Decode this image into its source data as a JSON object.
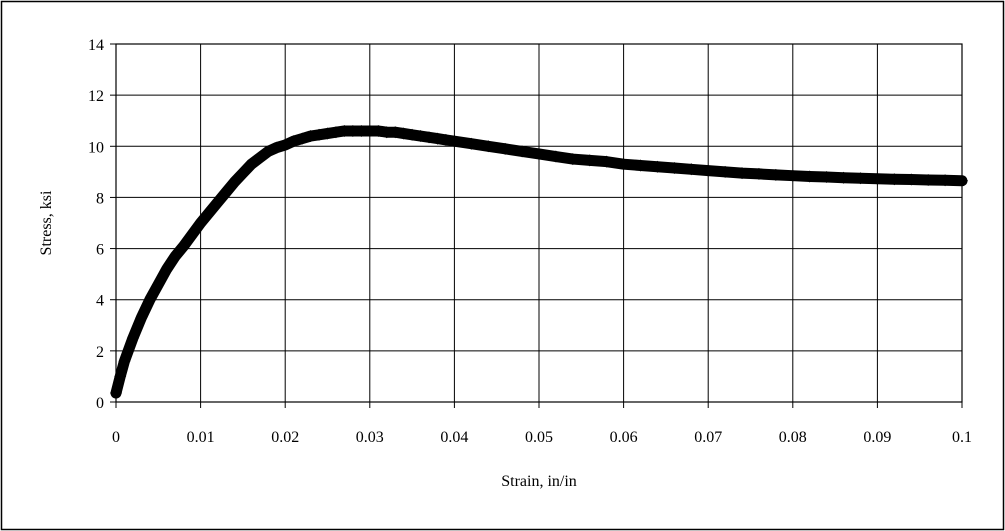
{
  "chart_data": {
    "type": "scatter",
    "title": "",
    "xlabel": "Strain, in/in",
    "ylabel": "Stress, ksi",
    "xlim": [
      0,
      0.1
    ],
    "ylim": [
      0,
      14
    ],
    "grid": true,
    "legend": "none",
    "marker": "diamond",
    "marker_color": "#000000",
    "x_ticks": [
      0,
      0.01,
      0.02,
      0.03,
      0.04,
      0.05,
      0.06,
      0.07,
      0.08,
      0.09,
      0.1
    ],
    "x_tick_labels": [
      "0",
      "0.01",
      "0.02",
      "0.03",
      "0.04",
      "0.05",
      "0.06",
      "0.07",
      "0.08",
      "0.09",
      "0.1"
    ],
    "y_ticks": [
      0,
      2,
      4,
      6,
      8,
      10,
      12,
      14
    ],
    "y_tick_labels": [
      "0",
      "2",
      "4",
      "6",
      "8",
      "10",
      "12",
      "14"
    ],
    "series": [
      {
        "x": [
          0,
          0.0005,
          0.001,
          0.002,
          0.003,
          0.004,
          0.005,
          0.006,
          0.007,
          0.008,
          0.009,
          0.01,
          0.011,
          0.012,
          0.013,
          0.014,
          0.015,
          0.016,
          0.017,
          0.018,
          0.019,
          0.02,
          0.021,
          0.022,
          0.023,
          0.024,
          0.025,
          0.026,
          0.027,
          0.028,
          0.029,
          0.03,
          0.031,
          0.032,
          0.033,
          0.034,
          0.035,
          0.036,
          0.037,
          0.038,
          0.039,
          0.04,
          0.042,
          0.044,
          0.046,
          0.048,
          0.05,
          0.052,
          0.054,
          0.056,
          0.058,
          0.06,
          0.062,
          0.064,
          0.066,
          0.068,
          0.07,
          0.072,
          0.074,
          0.076,
          0.078,
          0.08,
          0.082,
          0.084,
          0.086,
          0.088,
          0.09,
          0.092,
          0.094,
          0.096,
          0.098,
          0.1
        ],
        "y": [
          0.35,
          1.0,
          1.6,
          2.5,
          3.3,
          4.0,
          4.6,
          5.2,
          5.7,
          6.1,
          6.55,
          7.0,
          7.4,
          7.8,
          8.2,
          8.6,
          8.95,
          9.3,
          9.55,
          9.8,
          9.95,
          10.05,
          10.2,
          10.3,
          10.4,
          10.45,
          10.5,
          10.55,
          10.6,
          10.6,
          10.6,
          10.6,
          10.6,
          10.55,
          10.55,
          10.5,
          10.45,
          10.4,
          10.35,
          10.3,
          10.25,
          10.2,
          10.1,
          10.0,
          9.9,
          9.8,
          9.7,
          9.6,
          9.5,
          9.45,
          9.4,
          9.3,
          9.25,
          9.2,
          9.15,
          9.1,
          9.05,
          9.0,
          8.95,
          8.92,
          8.88,
          8.85,
          8.82,
          8.8,
          8.77,
          8.75,
          8.73,
          8.71,
          8.7,
          8.68,
          8.67,
          8.65
        ]
      }
    ]
  }
}
